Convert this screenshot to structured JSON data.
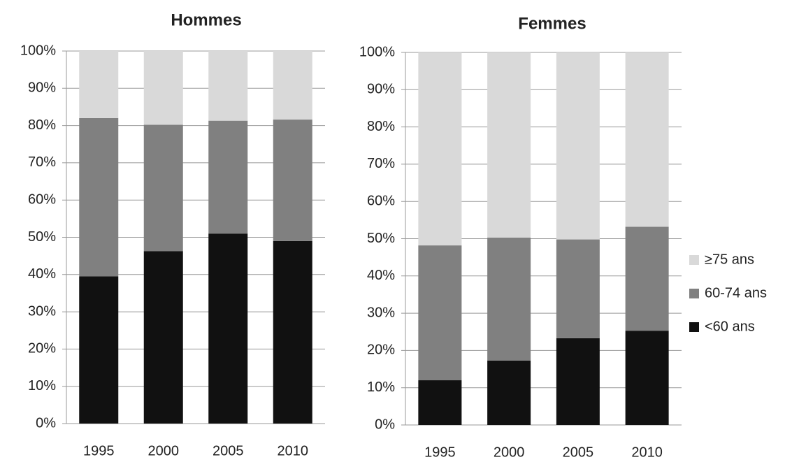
{
  "chart_data": [
    {
      "type": "stacked_bar",
      "title": "Hommes",
      "categories": [
        "1995",
        "2000",
        "2005",
        "2010"
      ],
      "series": [
        {
          "color": "#111111",
          "values": [
            39.5,
            46.3,
            51,
            49
          ]
        },
        {
          "color": "#808080",
          "values": [
            42.5,
            33.9,
            30.3,
            32.6
          ]
        },
        {
          "color": "#d9d9d9",
          "values": [
            18,
            19.8,
            18.7,
            18.4
          ]
        }
      ],
      "ylim": [
        0,
        100
      ],
      "yticks": [
        {
          "value": 0,
          "label": "0%"
        },
        {
          "value": 10,
          "label": "10%"
        },
        {
          "value": 20,
          "label": "20%"
        },
        {
          "value": 30,
          "label": "30%"
        },
        {
          "value": 40,
          "label": "40%"
        },
        {
          "value": 50,
          "label": "50%"
        },
        {
          "value": 60,
          "label": "60%"
        },
        {
          "value": 70,
          "label": "70%"
        },
        {
          "value": 80,
          "label": "80%"
        },
        {
          "value": 90,
          "label": "90%"
        },
        {
          "value": 100,
          "label": "100%"
        }
      ],
      "grid": true
    },
    {
      "type": "stacked_bar",
      "title": "Femmes",
      "categories": [
        "1995",
        "2000",
        "2005",
        "2010"
      ],
      "series": [
        {
          "name": "<60 ans",
          "color": "#111111",
          "values": [
            12,
            17.3,
            23.3,
            25.3
          ]
        },
        {
          "name": "60-74 ans",
          "color": "#808080",
          "values": [
            36.2,
            33,
            26.5,
            27.9
          ]
        },
        {
          "name": "≥75 ans",
          "color": "#d9d9d9",
          "values": [
            51.8,
            49.7,
            50.2,
            46.8
          ]
        }
      ],
      "ylim": [
        0,
        100
      ],
      "yticks": [
        {
          "value": 0,
          "label": "0%"
        },
        {
          "value": 10,
          "label": "10%"
        },
        {
          "value": 20,
          "label": "20%"
        },
        {
          "value": 30,
          "label": "30%"
        },
        {
          "value": 40,
          "label": "40%"
        },
        {
          "value": 50,
          "label": "50%"
        },
        {
          "value": 60,
          "label": "60%"
        },
        {
          "value": 70,
          "label": "70%"
        },
        {
          "value": 80,
          "label": "80%"
        },
        {
          "value": 90,
          "label": "90%"
        },
        {
          "value": 100,
          "label": "100%"
        }
      ],
      "grid": true,
      "legend": "right"
    }
  ]
}
